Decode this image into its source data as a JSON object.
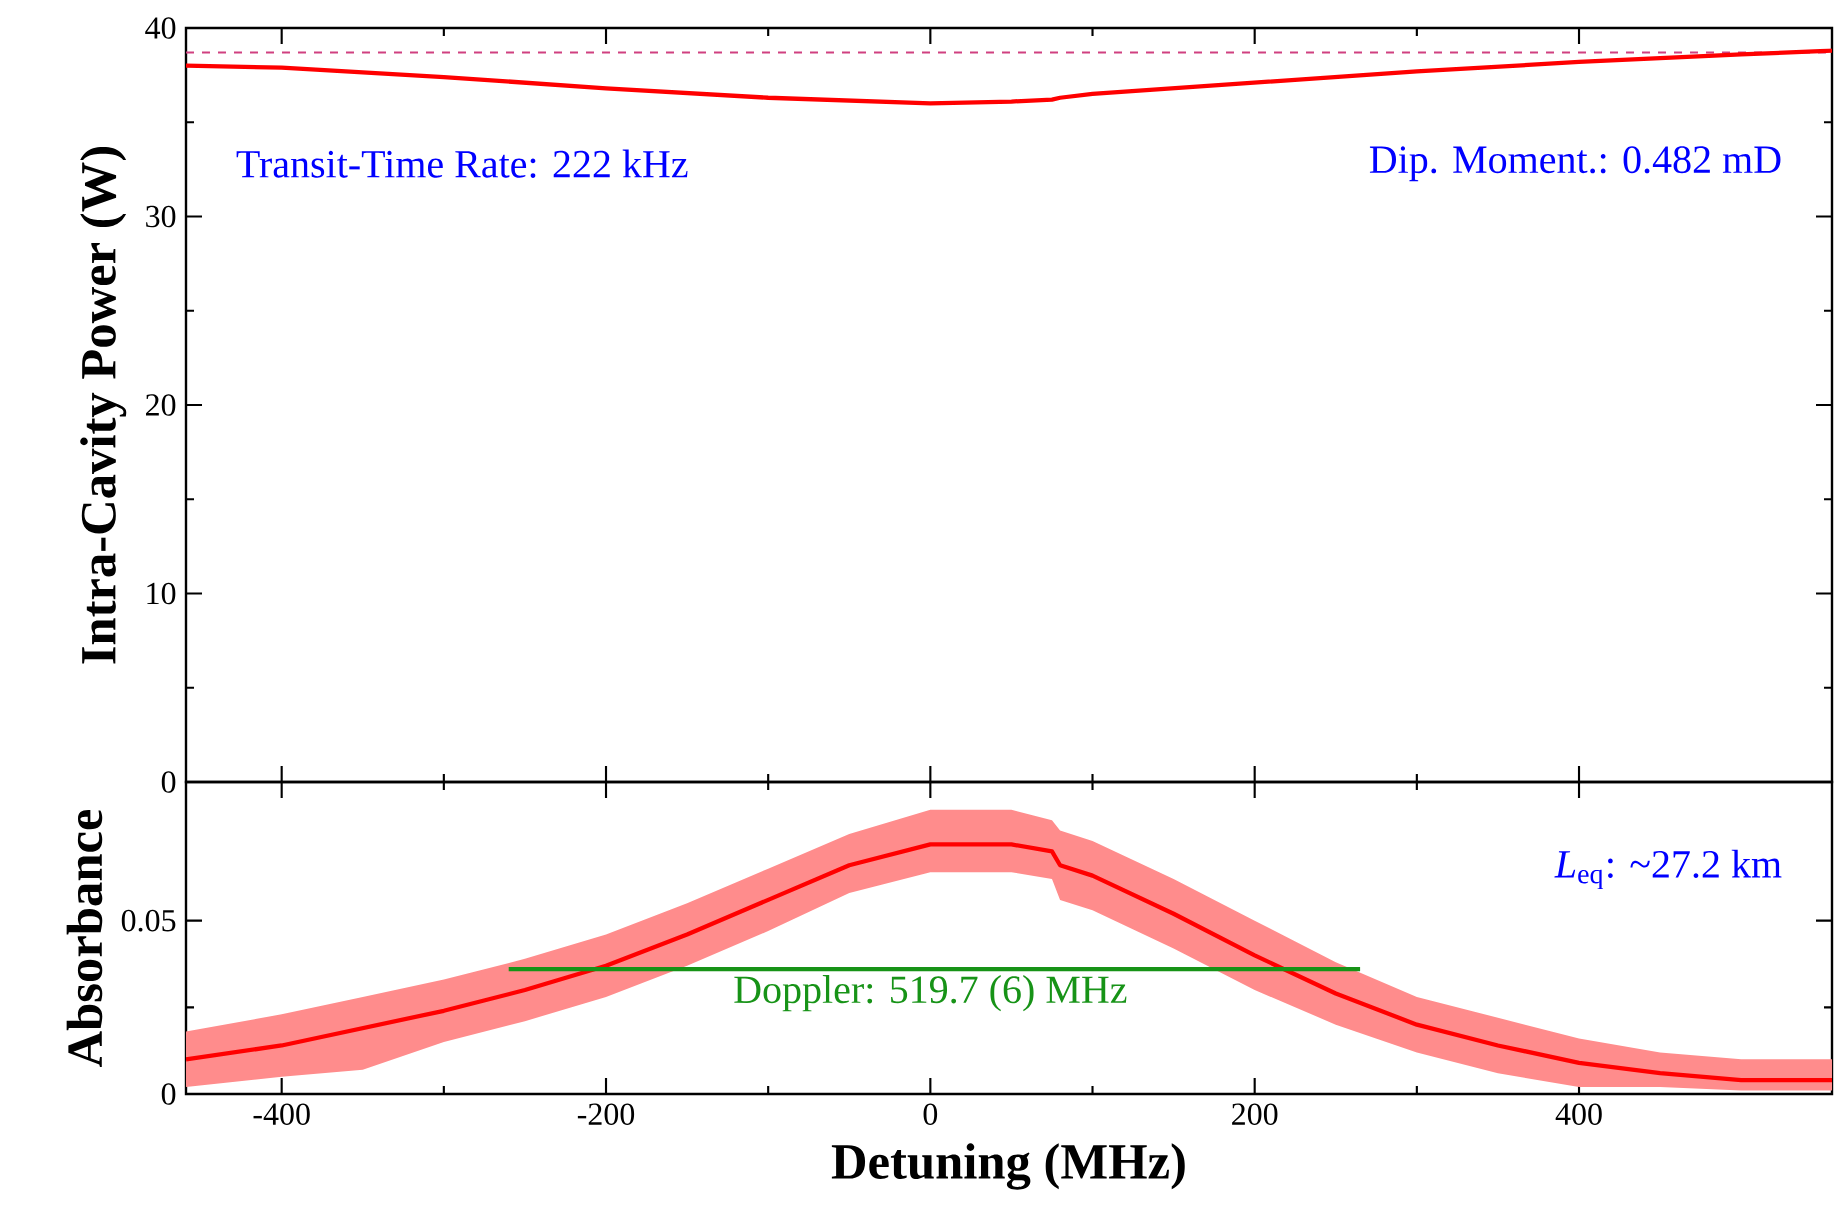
{
  "chart_data": [
    {
      "type": "line",
      "ylabel": "Intra-Cavity Power (W)",
      "xlim": [
        -459,
        556
      ],
      "ylim": [
        0,
        40
      ],
      "xticks": [
        -400,
        -200,
        0,
        200,
        400
      ],
      "yticks": [
        0,
        10,
        20,
        30,
        40
      ],
      "tick_labels": "y",
      "grid": false,
      "annotations": [
        "Transit-Time Rate: 222 kHz",
        "Dip. Moment.: 0.482 mD"
      ],
      "ref_lines": [
        {
          "axis": "y",
          "value": 38.7,
          "color": "#d04080",
          "line_style": "dashed"
        }
      ],
      "series": [
        {
          "color": "#ff0000",
          "x": [
            -459,
            -400,
            -300,
            -200,
            -100,
            0,
            50,
            75,
            80,
            100,
            150,
            200,
            300,
            400,
            500,
            556
          ],
          "values": [
            38.0,
            37.9,
            37.4,
            36.8,
            36.3,
            36.0,
            36.1,
            36.2,
            36.3,
            36.5,
            36.8,
            37.1,
            37.7,
            38.2,
            38.6,
            38.8
          ]
        }
      ]
    },
    {
      "type": "line",
      "ylabel": "Absorbance",
      "xlabel": "Detuning (MHz)",
      "xlim": [
        -459,
        556
      ],
      "ylim": [
        0,
        0.09
      ],
      "xticks": [
        -400,
        -200,
        0,
        200,
        400
      ],
      "yticks": [
        0,
        0.05
      ],
      "grid": false,
      "annotations": [
        "*L*$_{eq}$: ~27.2 km",
        {
          "text": "Doppler: 519.7 (6) MHz",
          "x": 0,
          "y": 0.036
        }
      ],
      "series": [
        {
          "color": "#ff0000",
          "x": [
            -459,
            -400,
            -350,
            -300,
            -250,
            -200,
            -150,
            -100,
            -50,
            0,
            50,
            75,
            80,
            100,
            150,
            200,
            250,
            300,
            350,
            400,
            450,
            500,
            556
          ],
          "values": [
            0.01,
            0.014,
            0.019,
            0.024,
            0.03,
            0.037,
            0.046,
            0.056,
            0.066,
            0.072,
            0.072,
            0.07,
            0.066,
            0.063,
            0.052,
            0.04,
            0.029,
            0.02,
            0.014,
            0.009,
            0.006,
            0.004,
            0.004
          ],
          "lower": [
            0.002,
            0.005,
            0.007,
            0.015,
            0.021,
            0.028,
            0.037,
            0.047,
            0.058,
            0.064,
            0.064,
            0.062,
            0.056,
            0.053,
            0.042,
            0.03,
            0.02,
            0.012,
            0.006,
            0.002,
            0.002,
            0.001,
            0.001
          ],
          "upper": [
            0.018,
            0.023,
            0.028,
            0.033,
            0.039,
            0.046,
            0.055,
            0.065,
            0.075,
            0.082,
            0.082,
            0.079,
            0.076,
            0.073,
            0.062,
            0.05,
            0.038,
            0.028,
            0.022,
            0.016,
            0.012,
            0.01,
            0.01
          ]
        },
        {
          "type": "line",
          "color": "#179317",
          "x": [
            -260,
            265
          ],
          "values": [
            0.036,
            0.036
          ]
        }
      ]
    }
  ]
}
